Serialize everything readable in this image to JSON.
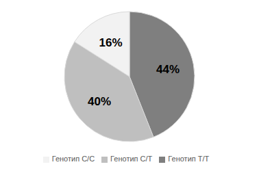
{
  "chart_data": {
    "type": "pie",
    "categories": [
      "Генотип T/T",
      "Генотип C/T",
      "Генотип C/C"
    ],
    "values": [
      44,
      40,
      16
    ],
    "value_labels": [
      "44%",
      "40%",
      "16%"
    ],
    "colors": [
      "#7f7f7f",
      "#bfbfbf",
      "#f2f2f2"
    ],
    "data_labels": true,
    "legend": "bottom"
  }
}
